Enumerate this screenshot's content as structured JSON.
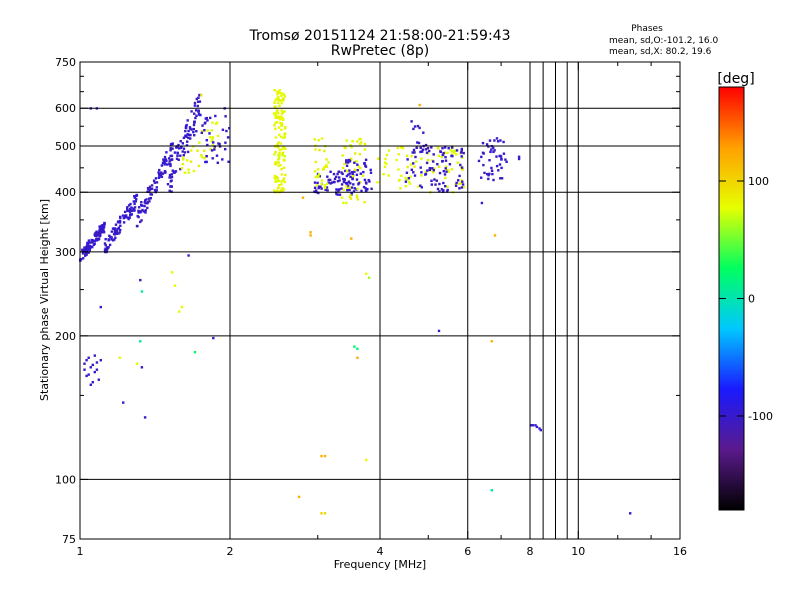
{
  "chart_data": {
    "type": "scatter",
    "title": "Tromsø 20151124 21:58:00-21:59:43",
    "subtitle": "RwPretec (8p)",
    "xlabel": "Frequency [MHz]",
    "ylabel": "Stationary phase Virtual Height [km]",
    "x_scale": "log",
    "y_scale": "log",
    "xlim": [
      1,
      16
    ],
    "ylim": [
      75,
      750
    ],
    "x_ticks": [
      1,
      2,
      4,
      6,
      8,
      10,
      16
    ],
    "x_tick_labels": [
      "1",
      "2",
      "4",
      "6",
      "8",
      "10",
      "16"
    ],
    "y_ticks": [
      75,
      100,
      200,
      300,
      400,
      500,
      600,
      750
    ],
    "y_tick_labels": [
      "75",
      "100",
      "200",
      "300",
      "400",
      "500",
      "600",
      "750"
    ],
    "grid": true,
    "colorbar": {
      "label": "[deg]",
      "range": [
        -180,
        180
      ],
      "tick_values": [
        100,
        0,
        -100
      ],
      "tick_labels": [
        "100",
        "0",
        "-100"
      ],
      "stops": [
        "#000000",
        "#5a1a8c",
        "#1a1aff",
        "#00c8ff",
        "#00ff60",
        "#e6ff00",
        "#ffa000",
        "#ff0000"
      ]
    },
    "stats": {
      "heading": "Phases",
      "o_line": "mean, sd,O:-101.2, 16.0",
      "x_line": "mean, sd,X: 80.2, 19.6"
    },
    "clusters": [
      {
        "f": [
          1.0,
          1.12
        ],
        "h": [
          288,
          345
        ],
        "phase": -101,
        "n": 110,
        "trend": 1.1
      },
      {
        "f": [
          1.12,
          1.3
        ],
        "h": [
          300,
          395
        ],
        "phase": -100,
        "n": 90,
        "trend": 1.3
      },
      {
        "f": [
          1.3,
          1.55
        ],
        "h": [
          340,
          520
        ],
        "phase": -102,
        "n": 90,
        "trend": 1.5
      },
      {
        "f": [
          1.5,
          1.75
        ],
        "h": [
          400,
          640
        ],
        "phase": -100,
        "n": 90,
        "trend": 1.0
      },
      {
        "f": [
          1.6,
          1.9
        ],
        "h": [
          440,
          560
        ],
        "phase": 80,
        "n": 35,
        "trend": 0.5
      },
      {
        "f": [
          1.75,
          2.0
        ],
        "h": [
          460,
          580
        ],
        "phase": -100,
        "n": 35,
        "trend": 0
      },
      {
        "f": [
          2.45,
          2.58
        ],
        "h": [
          400,
          660
        ],
        "phase": 80,
        "n": 140,
        "trend": 0
      },
      {
        "f": [
          2.95,
          3.6
        ],
        "h": [
          395,
          445
        ],
        "phase": -101,
        "n": 75,
        "trend": 0
      },
      {
        "f": [
          2.95,
          3.15
        ],
        "h": [
          405,
          520
        ],
        "phase": 80,
        "n": 30,
        "trend": 0
      },
      {
        "f": [
          3.35,
          3.75
        ],
        "h": [
          380,
          520
        ],
        "phase": 80,
        "n": 45,
        "trend": 0
      },
      {
        "f": [
          3.4,
          3.85
        ],
        "h": [
          400,
          470
        ],
        "phase": -100,
        "n": 40,
        "trend": 0
      },
      {
        "f": [
          3.95,
          5.9
        ],
        "h": [
          400,
          500
        ],
        "phase": 80,
        "n": 80,
        "trend": 0
      },
      {
        "f": [
          4.5,
          5.9
        ],
        "h": [
          400,
          500
        ],
        "phase": -101,
        "n": 90,
        "trend": 0
      },
      {
        "f": [
          4.6,
          5.0
        ],
        "h": [
          500,
          590
        ],
        "phase": -100,
        "n": 10,
        "trend": 0
      },
      {
        "f": [
          6.3,
          7.2
        ],
        "h": [
          420,
          520
        ],
        "phase": -101,
        "n": 45,
        "trend": 0
      }
    ],
    "points": [
      {
        "f": 1.02,
        "h": 175,
        "phase": -100
      },
      {
        "f": 1.03,
        "h": 165,
        "phase": -101
      },
      {
        "f": 1.05,
        "h": 172,
        "phase": -102
      },
      {
        "f": 1.07,
        "h": 168,
        "phase": -100
      },
      {
        "f": 1.08,
        "h": 176,
        "phase": -101
      },
      {
        "f": 1.06,
        "h": 160,
        "phase": -99
      },
      {
        "f": 1.04,
        "h": 180,
        "phase": -100
      },
      {
        "f": 1.09,
        "h": 162,
        "phase": -101
      },
      {
        "f": 1.03,
        "h": 178,
        "phase": -102
      },
      {
        "f": 1.05,
        "h": 158,
        "phase": -100
      },
      {
        "f": 1.07,
        "h": 182,
        "phase": -101
      },
      {
        "f": 1.08,
        "h": 170,
        "phase": -99
      },
      {
        "f": 1.06,
        "h": 174,
        "phase": -100
      },
      {
        "f": 1.04,
        "h": 166,
        "phase": -101
      },
      {
        "f": 1.1,
        "h": 178,
        "phase": -100
      },
      {
        "f": 1.02,
        "h": 170,
        "phase": -102
      },
      {
        "f": 1.05,
        "h": 600,
        "phase": -100
      },
      {
        "f": 1.08,
        "h": 600,
        "phase": -101
      },
      {
        "f": 1.1,
        "h": 230,
        "phase": -100
      },
      {
        "f": 1.2,
        "h": 180,
        "phase": 80
      },
      {
        "f": 1.22,
        "h": 145,
        "phase": -100
      },
      {
        "f": 1.3,
        "h": 175,
        "phase": 80
      },
      {
        "f": 1.33,
        "h": 172,
        "phase": -101
      },
      {
        "f": 1.35,
        "h": 135,
        "phase": -100
      },
      {
        "f": 1.32,
        "h": 195,
        "phase": 10
      },
      {
        "f": 1.32,
        "h": 262,
        "phase": -101
      },
      {
        "f": 1.33,
        "h": 248,
        "phase": 10
      },
      {
        "f": 1.53,
        "h": 272,
        "phase": 80
      },
      {
        "f": 1.55,
        "h": 255,
        "phase": 80
      },
      {
        "f": 1.58,
        "h": 225,
        "phase": 80
      },
      {
        "f": 1.6,
        "h": 230,
        "phase": 80
      },
      {
        "f": 1.65,
        "h": 295,
        "phase": -100
      },
      {
        "f": 1.7,
        "h": 185,
        "phase": 20
      },
      {
        "f": 1.85,
        "h": 198,
        "phase": -100
      },
      {
        "f": 1.75,
        "h": 640,
        "phase": 90
      },
      {
        "f": 1.95,
        "h": 600,
        "phase": -100
      },
      {
        "f": 2.8,
        "h": 390,
        "phase": 120
      },
      {
        "f": 2.9,
        "h": 330,
        "phase": 120
      },
      {
        "f": 2.9,
        "h": 325,
        "phase": 120
      },
      {
        "f": 2.75,
        "h": 92,
        "phase": 120
      },
      {
        "f": 3.05,
        "h": 112,
        "phase": 120
      },
      {
        "f": 3.1,
        "h": 112,
        "phase": 120
      },
      {
        "f": 3.05,
        "h": 85,
        "phase": 100
      },
      {
        "f": 3.1,
        "h": 85,
        "phase": 100
      },
      {
        "f": 3.5,
        "h": 320,
        "phase": 120
      },
      {
        "f": 3.55,
        "h": 190,
        "phase": 20
      },
      {
        "f": 3.6,
        "h": 188,
        "phase": 20
      },
      {
        "f": 3.6,
        "h": 180,
        "phase": 120
      },
      {
        "f": 3.75,
        "h": 270,
        "phase": 80
      },
      {
        "f": 3.8,
        "h": 265,
        "phase": 60
      },
      {
        "f": 3.75,
        "h": 110,
        "phase": 80
      },
      {
        "f": 3.95,
        "h": 420,
        "phase": 80
      },
      {
        "f": 4.8,
        "h": 610,
        "phase": 120
      },
      {
        "f": 5.25,
        "h": 205,
        "phase": -100
      },
      {
        "f": 5.6,
        "h": 400,
        "phase": 80
      },
      {
        "f": 6.4,
        "h": 380,
        "phase": -101
      },
      {
        "f": 6.7,
        "h": 195,
        "phase": 120
      },
      {
        "f": 6.8,
        "h": 325,
        "phase": 120
      },
      {
        "f": 6.7,
        "h": 95,
        "phase": 10
      },
      {
        "f": 6.7,
        "h": 500,
        "phase": -100
      },
      {
        "f": 7.6,
        "h": 470,
        "phase": -100
      },
      {
        "f": 7.6,
        "h": 475,
        "phase": -101
      },
      {
        "f": 8.05,
        "h": 130,
        "phase": -100
      },
      {
        "f": 8.1,
        "h": 130,
        "phase": -101
      },
      {
        "f": 8.2,
        "h": 130,
        "phase": -100
      },
      {
        "f": 8.25,
        "h": 129,
        "phase": -101
      },
      {
        "f": 8.35,
        "h": 128,
        "phase": -100
      },
      {
        "f": 8.4,
        "h": 127,
        "phase": -90
      },
      {
        "f": 12.7,
        "h": 85,
        "phase": -100
      }
    ]
  }
}
